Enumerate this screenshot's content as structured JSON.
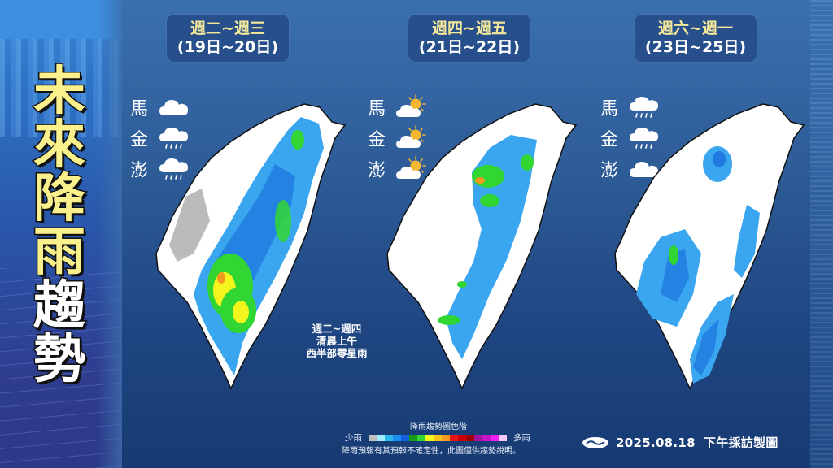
{
  "title": {
    "chars": [
      "未",
      "來",
      "降",
      "雨",
      "趨",
      "勢"
    ],
    "full": "未來降雨趨勢"
  },
  "periods": [
    {
      "days": "週二~週三",
      "dates": "(19日~20日)",
      "islands": [
        {
          "name": "馬",
          "weather": "cloudy-icon"
        },
        {
          "name": "金",
          "weather": "rain-icon"
        },
        {
          "name": "澎",
          "weather": "rain-icon"
        }
      ]
    },
    {
      "days": "週四~週五",
      "dates": "(21日~22日)",
      "islands": [
        {
          "name": "馬",
          "weather": "partly-sunny-icon"
        },
        {
          "name": "金",
          "weather": "partly-sunny-icon"
        },
        {
          "name": "澎",
          "weather": "partly-sunny-icon"
        }
      ]
    },
    {
      "days": "週六~週一",
      "dates": "(23日~25日)",
      "islands": [
        {
          "name": "馬",
          "weather": "rain-icon"
        },
        {
          "name": "金",
          "weather": "rain-icon"
        },
        {
          "name": "澎",
          "weather": "cloudy-icon"
        }
      ]
    }
  ],
  "note": {
    "line1": "週二~週四",
    "line2": "清晨上午",
    "line3": "西半部零星雨"
  },
  "legend": {
    "title": "降雨趨勢圖色階",
    "low_label": "少雨",
    "high_label": "多雨",
    "colors": [
      "#c0c0c0",
      "#9eeefc",
      "#2ab8f0",
      "#1a8ef0",
      "#1560e0",
      "#1a9a1a",
      "#32d632",
      "#f5f51e",
      "#f5c31e",
      "#f59a1e",
      "#e61414",
      "#cc0000",
      "#a00000",
      "#a014a0",
      "#c814c8",
      "#f01ef0",
      "#fac8fa"
    ],
    "disclaimer": "降雨預報有其預報不確定性，此圖僅供趨勢說明。"
  },
  "source": {
    "date": "2025.08.18",
    "label": "下午採訪製圖",
    "logo": "cwa-logo-icon"
  },
  "colors": {
    "title_yellow": "#fbf18c",
    "period_box": "#274f8c",
    "period_days_text": "#f6ea9a"
  }
}
